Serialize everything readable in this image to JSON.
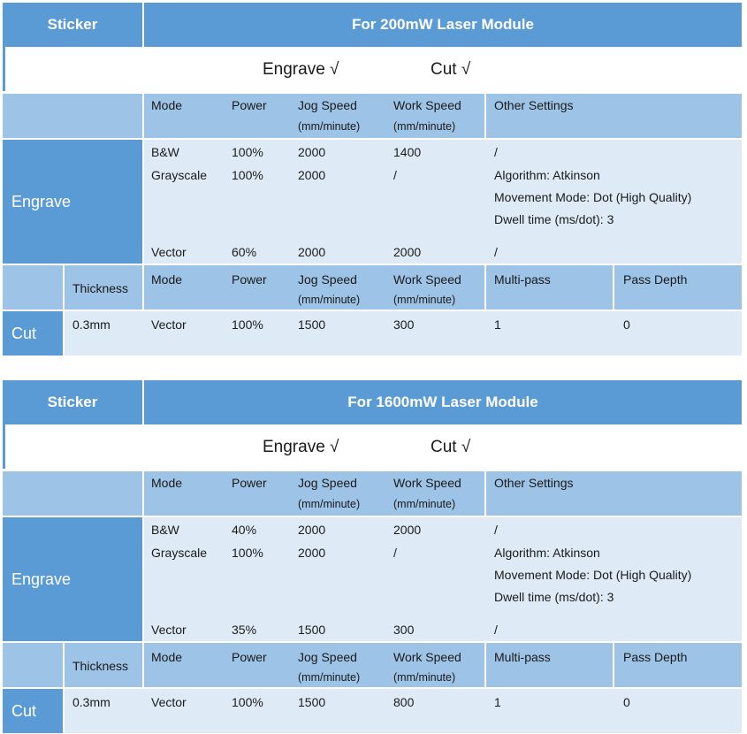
{
  "tables": [
    {
      "sticker": "Sticker",
      "title": "For 200mW Laser Module",
      "engrave_check": "Engrave  √",
      "cut_check": "Cut  √",
      "engrave_headers": {
        "mode": "Mode",
        "power": "Power",
        "jog_speed": "Jog Speed",
        "jog_unit": "(mm/minute)",
        "work_speed": "Work Speed",
        "work_unit": "(mm/minute)",
        "other": "Other Settings"
      },
      "engrave_label": "Engrave",
      "engrave_rows": [
        {
          "mode": "B&W",
          "power": "100%",
          "jog": "2000",
          "work": "1400",
          "other": "/"
        },
        {
          "mode": "Grayscale",
          "power": "100%",
          "jog": "2000",
          "work": "/",
          "other_lines": [
            "Algorithm: Atkinson",
            "Movement Mode: Dot (High Quality)",
            "Dwell time (ms/dot): 3"
          ]
        },
        {
          "mode": "Vector",
          "power": "60%",
          "jog": "2000",
          "work": "2000",
          "other": "/"
        }
      ],
      "cut_headers": {
        "thickness": "Thickness",
        "mode": "Mode",
        "power": "Power",
        "jog_speed": "Jog Speed",
        "jog_unit": "(mm/minute)",
        "work_speed": "Work Speed",
        "work_unit": "(mm/minute)",
        "multipass": "Multi-pass",
        "pass_depth": "Pass Depth"
      },
      "cut_label": "Cut",
      "cut_row": {
        "thickness": "0.3mm",
        "mode": "Vector",
        "power": "100%",
        "jog": "1500",
        "work": "300",
        "multipass": "1",
        "depth": "0"
      }
    },
    {
      "sticker": "Sticker",
      "title": "For 1600mW Laser Module",
      "engrave_check": "Engrave  √",
      "cut_check": "Cut  √",
      "engrave_headers": {
        "mode": "Mode",
        "power": "Power",
        "jog_speed": "Jog Speed",
        "jog_unit": "(mm/minute)",
        "work_speed": "Work Speed",
        "work_unit": "(mm/minute)",
        "other": "Other Settings"
      },
      "engrave_label": "Engrave",
      "engrave_rows": [
        {
          "mode": "B&W",
          "power": "40%",
          "jog": "2000",
          "work": "2000",
          "other": "/"
        },
        {
          "mode": "Grayscale",
          "power": "100%",
          "jog": "2000",
          "work": "/",
          "other_lines": [
            "Algorithm: Atkinson",
            "Movement Mode: Dot (High Quality)",
            "Dwell time (ms/dot): 3"
          ]
        },
        {
          "mode": "Vector",
          "power": "35%",
          "jog": "1500",
          "work": "300",
          "other": "/"
        }
      ],
      "cut_headers": {
        "thickness": "Thickness",
        "mode": "Mode",
        "power": "Power",
        "jog_speed": "Jog Speed",
        "jog_unit": "(mm/minute)",
        "work_speed": "Work Speed",
        "work_unit": "(mm/minute)",
        "multipass": "Multi-pass",
        "pass_depth": "Pass Depth"
      },
      "cut_label": "Cut",
      "cut_row": {
        "thickness": "0.3mm",
        "mode": "Vector",
        "power": "100%",
        "jog": "1500",
        "work": "800",
        "multipass": "1",
        "depth": "0"
      }
    }
  ]
}
